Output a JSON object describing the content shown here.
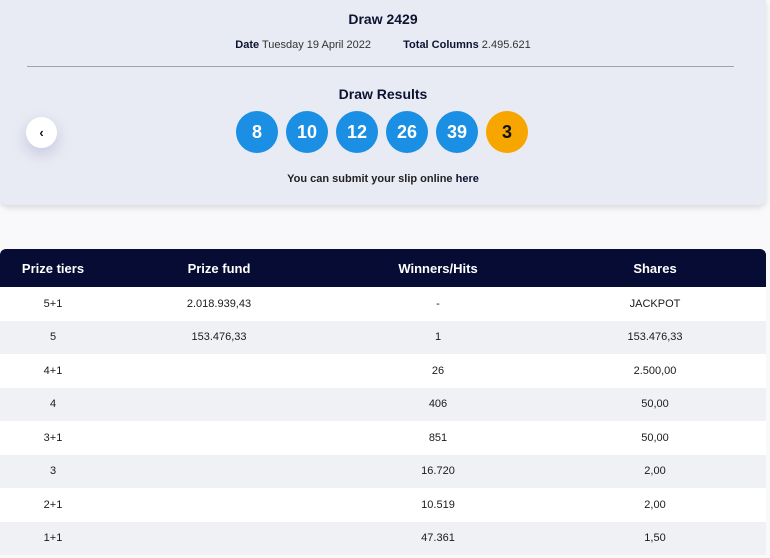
{
  "header": {
    "draw_title": "Draw 2429",
    "date_label": "Date",
    "date_value": "Tuesday 19 April 2022",
    "columns_label": "Total Columns",
    "columns_value": "2.495.621"
  },
  "results": {
    "title": "Draw Results",
    "prev_icon": "chevron-left-icon",
    "numbers": [
      "8",
      "10",
      "12",
      "26",
      "39"
    ],
    "bonus": "3",
    "submit_text": "You can submit your slip online ",
    "submit_link": "here"
  },
  "colors": {
    "main_ball": "#1a8fe3",
    "bonus_ball": "#f7a600",
    "table_header": "#060c33"
  },
  "table": {
    "headers": [
      "Prize tiers",
      "Prize fund",
      "Winners/Hits",
      "Shares"
    ],
    "rows": [
      [
        "5+1",
        "2.018.939,43",
        "-",
        "JACKPOT"
      ],
      [
        "5",
        "153.476,33",
        "1",
        "153.476,33"
      ],
      [
        "4+1",
        "",
        "26",
        "2.500,00"
      ],
      [
        "4",
        "",
        "406",
        "50,00"
      ],
      [
        "3+1",
        "",
        "851",
        "50,00"
      ],
      [
        "3",
        "",
        "16.720",
        "2,00"
      ],
      [
        "2+1",
        "",
        "10.519",
        "2,00"
      ],
      [
        "1+1",
        "",
        "47.361",
        "1,50"
      ]
    ]
  }
}
